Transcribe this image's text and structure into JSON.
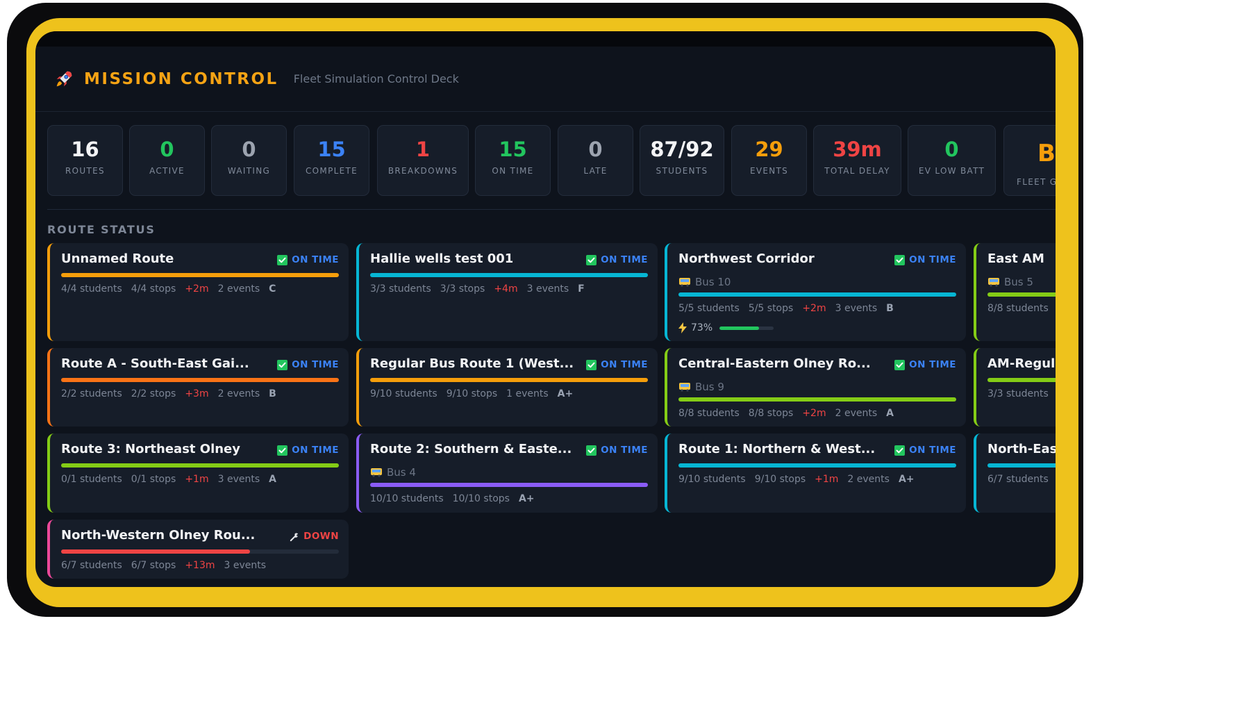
{
  "app": {
    "title": "MISSION CONTROL",
    "subtitle": "Fleet Simulation Control Deck",
    "icon": "rocket-icon"
  },
  "stats": [
    {
      "value": "16",
      "label": "ROUTES",
      "color": "#f3f4f6"
    },
    {
      "value": "0",
      "label": "ACTIVE",
      "color": "#22c55e"
    },
    {
      "value": "0",
      "label": "WAITING",
      "color": "#9ca3af"
    },
    {
      "value": "15",
      "label": "COMPLETE",
      "color": "#3b82f6"
    },
    {
      "value": "1",
      "label": "BREAKDOWNS",
      "color": "#ef4444"
    },
    {
      "value": "15",
      "label": "ON TIME",
      "color": "#22c55e"
    },
    {
      "value": "0",
      "label": "LATE",
      "color": "#9ca3af"
    },
    {
      "value": "87/92",
      "label": "STUDENTS",
      "color": "#f3f4f6"
    },
    {
      "value": "29",
      "label": "EVENTS",
      "color": "#f59e0b"
    },
    {
      "value": "39m",
      "label": "TOTAL DELAY",
      "color": "#ef4444"
    },
    {
      "value": "0",
      "label": "EV LOW BATT",
      "color": "#22c55e"
    },
    {
      "value": "B",
      "label": "FLEET G",
      "color": "#f59e0b"
    }
  ],
  "section": {
    "title": "ROUTE STATUS"
  },
  "routes": [
    {
      "name": "Unnamed Route",
      "status": "ON TIME",
      "status_icon": "check-icon",
      "accent": "#f59e0b",
      "bar_fill": 1.0,
      "bus": "",
      "students": "4/4 students",
      "stops": "4/4 stops",
      "delay": "+2m",
      "events": "2 events",
      "grade": "C",
      "battery": ""
    },
    {
      "name": "Hallie wells test 001",
      "status": "ON TIME",
      "status_icon": "check-icon",
      "accent": "#06b6d4",
      "bar_fill": 1.0,
      "bus": "",
      "students": "3/3 students",
      "stops": "3/3 stops",
      "delay": "+4m",
      "events": "3 events",
      "grade": "F",
      "battery": ""
    },
    {
      "name": "Northwest Corridor",
      "status": "ON TIME",
      "status_icon": "check-icon",
      "accent": "#06b6d4",
      "bar_fill": 1.0,
      "bus": "Bus 10",
      "students": "5/5 students",
      "stops": "5/5 stops",
      "delay": "+2m",
      "events": "3 events",
      "grade": "B",
      "battery": "73%",
      "battery_level": 0.73
    },
    {
      "name": "East AM",
      "status": "",
      "status_icon": "",
      "accent": "#84cc16",
      "bar_fill": 1.0,
      "bus": "Bus 5",
      "students": "8/8 students",
      "stops": "",
      "delay": "",
      "events": "",
      "grade": "",
      "battery": ""
    },
    {
      "name": "Route A - South-East Gai...",
      "status": "ON TIME",
      "status_icon": "check-icon",
      "accent": "#f97316",
      "bar_fill": 1.0,
      "bus": "",
      "students": "2/2 students",
      "stops": "2/2 stops",
      "delay": "+3m",
      "events": "2 events",
      "grade": "B",
      "battery": ""
    },
    {
      "name": "Regular Bus Route 1 (West...",
      "status": "ON TIME",
      "status_icon": "check-icon",
      "accent": "#f59e0b",
      "bar_fill": 1.0,
      "bus": "",
      "students": "9/10 students",
      "stops": "9/10 stops",
      "delay": "",
      "events": "1 events",
      "grade": "A+",
      "battery": ""
    },
    {
      "name": "Central-Eastern Olney Ro...",
      "status": "ON TIME",
      "status_icon": "check-icon",
      "accent": "#84cc16",
      "bar_fill": 1.0,
      "bus": "Bus 9",
      "students": "8/8 students",
      "stops": "8/8 stops",
      "delay": "+2m",
      "events": "2 events",
      "grade": "A",
      "battery": ""
    },
    {
      "name": "AM-Regula",
      "status": "",
      "status_icon": "",
      "accent": "#84cc16",
      "bar_fill": 1.0,
      "bus": "",
      "students": "3/3 students",
      "stops": "",
      "delay": "",
      "events": "",
      "grade": "",
      "battery": ""
    },
    {
      "name": "Route 3: Northeast Olney",
      "status": "ON TIME",
      "status_icon": "check-icon",
      "accent": "#84cc16",
      "bar_fill": 1.0,
      "bus": "",
      "students": "0/1 students",
      "stops": "0/1 stops",
      "delay": "+1m",
      "events": "3 events",
      "grade": "A",
      "battery": ""
    },
    {
      "name": "Route 2: Southern & Easte...",
      "status": "ON TIME",
      "status_icon": "check-icon",
      "accent": "#8b5cf6",
      "bar_fill": 1.0,
      "bus": "Bus 4",
      "students": "10/10 students",
      "stops": "10/10 stops",
      "delay": "",
      "events": "",
      "grade": "A+",
      "battery": ""
    },
    {
      "name": "Route 1: Northern & West...",
      "status": "ON TIME",
      "status_icon": "check-icon",
      "accent": "#06b6d4",
      "bar_fill": 1.0,
      "bus": "",
      "students": "9/10 students",
      "stops": "9/10 stops",
      "delay": "+1m",
      "events": "2 events",
      "grade": "A+",
      "battery": ""
    },
    {
      "name": "North-Eas",
      "status": "",
      "status_icon": "",
      "accent": "#06b6d4",
      "bar_fill": 1.0,
      "bus": "",
      "students": "6/7 students",
      "stops": "",
      "delay": "",
      "events": "",
      "grade": "",
      "battery": ""
    },
    {
      "name": "North-Western Olney Rou...",
      "status": "DOWN",
      "status_icon": "wrench-icon",
      "accent": "#ec4899",
      "bar_fill": 0.68,
      "bar_color": "#ef4444",
      "bus": "",
      "students": "6/7 students",
      "stops": "6/7 stops",
      "delay": "+13m",
      "events": "3 events",
      "grade": "",
      "battery": ""
    }
  ],
  "colors": {
    "on_time": "#3b82f6",
    "down": "#ef4444",
    "check": "#22c55e"
  }
}
